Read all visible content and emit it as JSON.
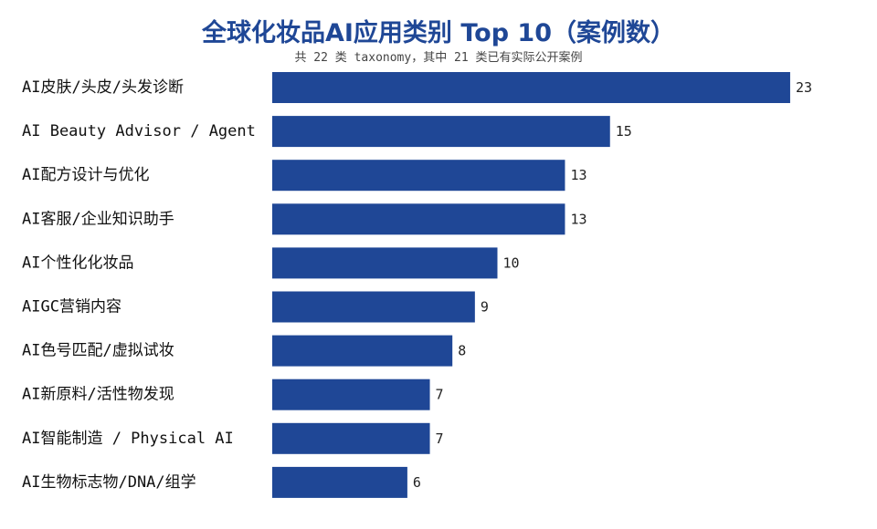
{
  "chart_data": {
    "type": "bar",
    "orientation": "horizontal",
    "title": "全球化妆品AI应用类别 Top 10（案例数）",
    "subtitle": "共 22 类 taxonomy，其中 21 类已有实际公开案例",
    "categories": [
      "AI皮肤/头皮/头发诊断",
      "AI Beauty Advisor / Agent",
      "AI配方设计与优化",
      "AI客服/企业知识助手",
      "AI个性化化妆品",
      "AIGC营销内容",
      "AI色号匹配/虚拟试妆",
      "AI新原料/活性物发现",
      "AI智能制造 / Physical AI",
      "AI生物标志物/DNA/组学"
    ],
    "values": [
      23,
      15,
      13,
      13,
      10,
      9,
      8,
      7,
      7,
      6
    ],
    "xlim": [
      0,
      25
    ],
    "bar_color": "#1f4796",
    "title_color": "#1f4796",
    "grid": false,
    "legend": "none",
    "data_labels": true
  }
}
